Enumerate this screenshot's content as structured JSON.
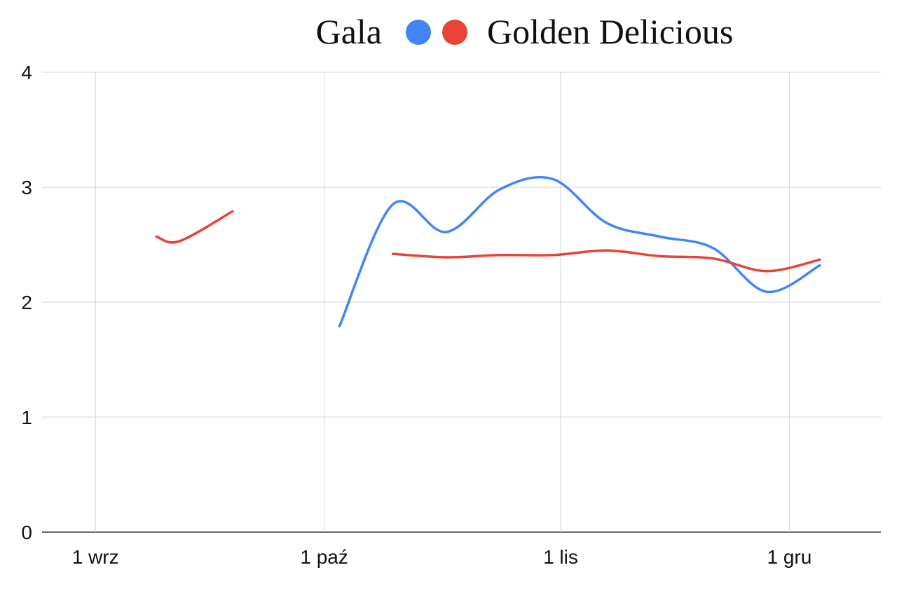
{
  "chart_data": {
    "type": "line",
    "legend_position": "top",
    "grid": true,
    "x_axis": {
      "type": "date",
      "range": [
        "2024-08-25",
        "2024-12-13"
      ],
      "ticks": [
        {
          "date": "2024-09-01",
          "label": "1 wrz"
        },
        {
          "date": "2024-10-01",
          "label": "1 paź"
        },
        {
          "date": "2024-11-01",
          "label": "1 lis"
        },
        {
          "date": "2024-12-01",
          "label": "1 gru"
        }
      ]
    },
    "y_axis": {
      "range": [
        0,
        4
      ],
      "ticks": [
        0,
        1,
        2,
        3,
        4
      ]
    },
    "series": [
      {
        "name": "Gala",
        "color": "#4285f4",
        "segments": [
          [
            {
              "x": "2024-10-03",
              "y": 1.79
            },
            {
              "x": "2024-10-10",
              "y": 2.85
            },
            {
              "x": "2024-10-17",
              "y": 2.61
            },
            {
              "x": "2024-10-24",
              "y": 2.98
            },
            {
              "x": "2024-10-31",
              "y": 3.07
            },
            {
              "x": "2024-11-07",
              "y": 2.69
            },
            {
              "x": "2024-11-14",
              "y": 2.57
            },
            {
              "x": "2024-11-21",
              "y": 2.47
            },
            {
              "x": "2024-11-28",
              "y": 2.09
            },
            {
              "x": "2024-12-05",
              "y": 2.32
            }
          ]
        ]
      },
      {
        "name": "Golden Delicious",
        "color": "#ea4335",
        "segments": [
          [
            {
              "x": "2024-09-09",
              "y": 2.57
            },
            {
              "x": "2024-09-12",
              "y": 2.53
            },
            {
              "x": "2024-09-19",
              "y": 2.79
            }
          ],
          [
            {
              "x": "2024-10-10",
              "y": 2.42
            },
            {
              "x": "2024-10-17",
              "y": 2.39
            },
            {
              "x": "2024-10-24",
              "y": 2.41
            },
            {
              "x": "2024-10-31",
              "y": 2.41
            },
            {
              "x": "2024-11-07",
              "y": 2.45
            },
            {
              "x": "2024-11-14",
              "y": 2.4
            },
            {
              "x": "2024-11-21",
              "y": 2.38
            },
            {
              "x": "2024-11-28",
              "y": 2.27
            },
            {
              "x": "2024-12-05",
              "y": 2.37
            }
          ]
        ]
      }
    ]
  }
}
